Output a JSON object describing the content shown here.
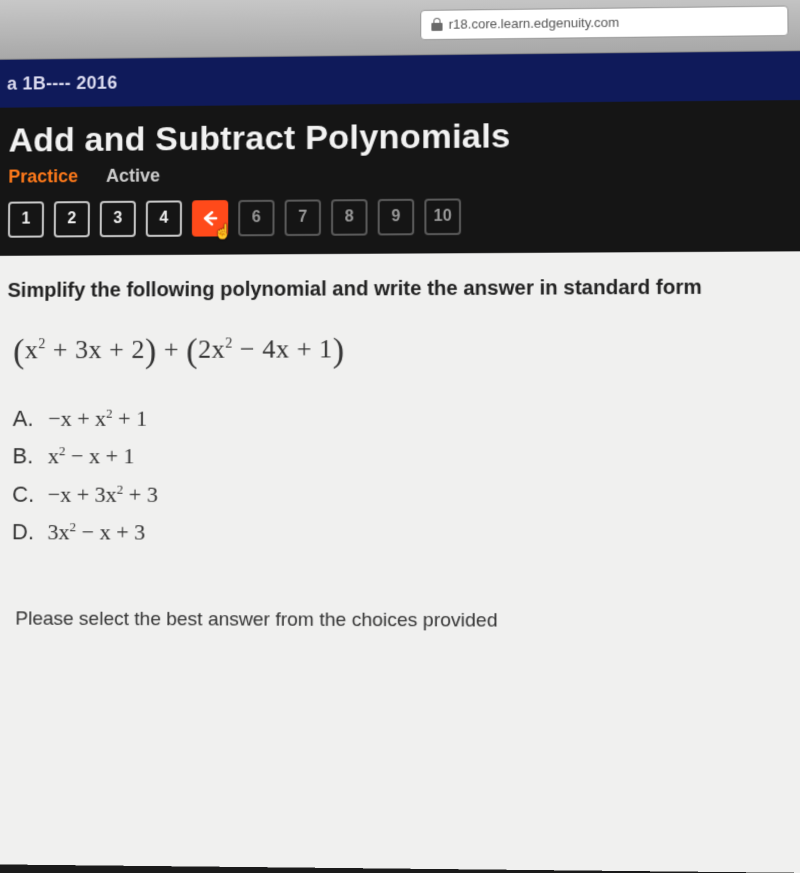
{
  "browser": {
    "url_text": "r18.core.learn.edgenuity.com"
  },
  "course": {
    "breadcrumb": "a 1B---- 2016"
  },
  "lesson": {
    "title": "Add and Subtract Polynomials",
    "tab_practice": "Practice",
    "tab_active": "Active"
  },
  "nav": {
    "buttons": [
      {
        "label": "1",
        "state": "done"
      },
      {
        "label": "2",
        "state": "done"
      },
      {
        "label": "3",
        "state": "done"
      },
      {
        "label": "4",
        "state": "done"
      },
      {
        "label": "◆",
        "state": "current"
      },
      {
        "label": "6",
        "state": "locked"
      },
      {
        "label": "7",
        "state": "locked"
      },
      {
        "label": "8",
        "state": "locked"
      },
      {
        "label": "9",
        "state": "locked"
      },
      {
        "label": "10",
        "state": "locked"
      }
    ]
  },
  "question": {
    "prompt": "Simplify the following polynomial and write the answer in standard form",
    "expression_html": "<span class='paren'>(</span>x<sup>2</sup> + 3x + 2<span class='paren'>)</span> + <span class='paren'>(</span>2x<sup>2</sup> − 4x + 1<span class='paren'>)</span>",
    "choices": [
      {
        "label": "A.",
        "html": "−x + x<sup>2</sup> + 1"
      },
      {
        "label": "B.",
        "html": "x<sup>2</sup> − x + 1"
      },
      {
        "label": "C.",
        "html": "−x + 3x<sup>2</sup> + 3"
      },
      {
        "label": "D.",
        "html": "3x<sup>2</sup> − x + 3"
      }
    ],
    "footer_prompt": "Please select the best answer from the choices provided"
  },
  "colors": {
    "course_bar_bg": "#0f1a5a",
    "practice_tab": "#ff7a1a",
    "current_q_bg": "#ff4a1a",
    "content_bg": "#f0f0ef"
  }
}
